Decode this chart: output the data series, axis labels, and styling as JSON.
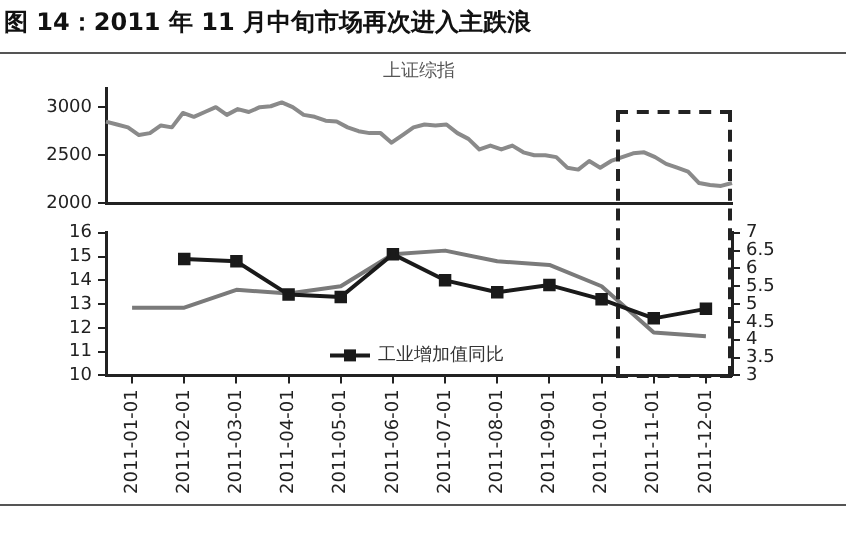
{
  "chart_data": [
    {
      "type": "line",
      "title": "图 14：2011 年 11 月中旬市场再次进入主跌浪",
      "categories": [
        null,
        null,
        null,
        null,
        null,
        null,
        null,
        null,
        null,
        null,
        null,
        null,
        null,
        null,
        null,
        null,
        null,
        null,
        null,
        null,
        null,
        null,
        null,
        null,
        null,
        null,
        null,
        null,
        null,
        null,
        null,
        null,
        null,
        null,
        null,
        null,
        null,
        null,
        null,
        null,
        null,
        null,
        null,
        null,
        null,
        null,
        null,
        null,
        null,
        null,
        null,
        null,
        null,
        null,
        null,
        null,
        null,
        null
      ],
      "ylim": [
        2000,
        3200
      ],
      "yticks": [
        2000,
        2500,
        3000
      ],
      "tick_labels": "y",
      "grid": false,
      "legend": false,
      "series": [
        {
          "name": "上证综指",
          "color": "#8a8a8a",
          "marker": "none",
          "values": [
            2850,
            2820,
            2790,
            2710,
            2730,
            2810,
            2790,
            2940,
            2900,
            2950,
            3000,
            2920,
            2980,
            2950,
            3000,
            3010,
            3050,
            3000,
            2920,
            2900,
            2860,
            2850,
            2790,
            2750,
            2730,
            2730,
            2630,
            2710,
            2790,
            2820,
            2810,
            2820,
            2730,
            2670,
            2560,
            2600,
            2560,
            2600,
            2530,
            2500,
            2500,
            2480,
            2370,
            2350,
            2440,
            2370,
            2440,
            2480,
            2520,
            2530,
            2480,
            2410,
            2370,
            2330,
            2210,
            2190,
            2180,
            2210
          ]
        }
      ]
    },
    {
      "type": "line",
      "categories": [
        "2011-01-01",
        "2011-02-01",
        "2011-03-01",
        "2011-04-01",
        "2011-05-01",
        "2011-06-01",
        "2011-07-01",
        "2011-08-01",
        "2011-09-01",
        "2011-10-01",
        "2011-11-01",
        "2011-12-01"
      ],
      "ylim": [
        10,
        16
      ],
      "yticks": [
        10,
        11,
        12,
        13,
        14,
        15,
        16
      ],
      "y2lim": [
        3,
        7
      ],
      "y2ticks": [
        3,
        3.5,
        4,
        4.5,
        5,
        5.5,
        6,
        6.5,
        7
      ],
      "grid": false,
      "legend": "bottom",
      "series": [
        {
          "name": "工业增加值同比",
          "color": "#1a1a1a",
          "marker": "square",
          "values": [
            null,
            14.9,
            14.8,
            13.4,
            13.3,
            15.1,
            14.0,
            13.5,
            13.8,
            13.2,
            12.4,
            12.8
          ]
        },
        {
          "color": "#7a7a7a",
          "marker": "none",
          "axis": "y2",
          "values": [
            4.9,
            4.9,
            5.4,
            5.3,
            5.5,
            6.4,
            6.5,
            6.2,
            6.1,
            5.5,
            4.2,
            4.1
          ]
        }
      ]
    }
  ]
}
